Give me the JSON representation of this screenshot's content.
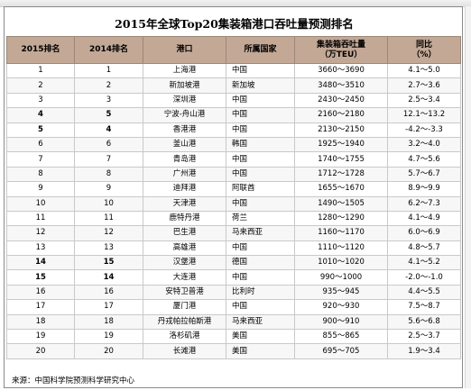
{
  "title": "2015年全球Top20集装箱港口吞吐量预测排名",
  "headers": {
    "rank2015": "2015排名",
    "rank2014": "2014排名",
    "port": "港口",
    "country": "所属国家",
    "volume_line1": "集装箱吞吐量",
    "volume_line2": "（万TEU）",
    "yoy_line1": "同比",
    "yoy_line2": "（%）"
  },
  "rows": [
    {
      "r2015": "1",
      "r2014": "1",
      "port": "上海港",
      "country": "中国",
      "volume": "3660～3690",
      "yoy": "4.1～5.0"
    },
    {
      "r2015": "2",
      "r2014": "2",
      "port": "新加坡港",
      "country": "新加坡",
      "volume": "3480～3510",
      "yoy": "2.7～3.6"
    },
    {
      "r2015": "3",
      "r2014": "3",
      "port": "深圳港",
      "country": "中国",
      "volume": "2430～2450",
      "yoy": "2.5～3.4"
    },
    {
      "r2015": "4",
      "r2014": "5",
      "port": "宁波-舟山港",
      "country": "中国",
      "volume": "2160～2180",
      "yoy": "12.1～13.2"
    },
    {
      "r2015": "5",
      "r2014": "4",
      "port": "香港港",
      "country": "中国",
      "volume": "2130～2150",
      "yoy": "-4.2～-3.3"
    },
    {
      "r2015": "6",
      "r2014": "6",
      "port": "釜山港",
      "country": "韩国",
      "volume": "1925～1940",
      "yoy": "3.2～4.0"
    },
    {
      "r2015": "7",
      "r2014": "7",
      "port": "青岛港",
      "country": "中国",
      "volume": "1740～1755",
      "yoy": "4.7～5.6"
    },
    {
      "r2015": "8",
      "r2014": "8",
      "port": "广州港",
      "country": "中国",
      "volume": "1712～1728",
      "yoy": "5.7～6.7"
    },
    {
      "r2015": "9",
      "r2014": "9",
      "port": "迪拜港",
      "country": "阿联酋",
      "volume": "1655～1670",
      "yoy": "8.9～9.9"
    },
    {
      "r2015": "10",
      "r2014": "10",
      "port": "天津港",
      "country": "中国",
      "volume": "1490～1505",
      "yoy": "6.2～7.3"
    },
    {
      "r2015": "11",
      "r2014": "11",
      "port": "鹿特丹港",
      "country": "荷兰",
      "volume": "1280～1290",
      "yoy": "4.1～4.9"
    },
    {
      "r2015": "12",
      "r2014": "12",
      "port": "巴生港",
      "country": "马来西亚",
      "volume": "1160～1170",
      "yoy": "6.0～6.9"
    },
    {
      "r2015": "13",
      "r2014": "13",
      "port": "高雄港",
      "country": "中国",
      "volume": "1110～1120",
      "yoy": "4.8～5.7"
    },
    {
      "r2015": "14",
      "r2014": "15",
      "port": "汉堡港",
      "country": "德国",
      "volume": "1010～1020",
      "yoy": "4.1～5.2"
    },
    {
      "r2015": "15",
      "r2014": "14",
      "port": "大连港",
      "country": "中国",
      "volume": "990～1000",
      "yoy": "-2.0～-1.0"
    },
    {
      "r2015": "16",
      "r2014": "16",
      "port": "安特卫普港",
      "country": "比利时",
      "volume": "935～945",
      "yoy": "4.4～5.5"
    },
    {
      "r2015": "17",
      "r2014": "17",
      "port": "厦门港",
      "country": "中国",
      "volume": "920～930",
      "yoy": "7.5～8.7"
    },
    {
      "r2015": "18",
      "r2014": "18",
      "port": "丹戎帕拉帕斯港",
      "country": "马来西亚",
      "volume": "900～910",
      "yoy": "5.6～6.8"
    },
    {
      "r2015": "19",
      "r2014": "19",
      "port": "洛杉矶港",
      "country": "美国",
      "volume": "855～865",
      "yoy": "2.5～3.7"
    },
    {
      "r2015": "20",
      "r2014": "20",
      "port": "长滩港",
      "country": "美国",
      "volume": "695～705",
      "yoy": "1.9～3.4"
    }
  ],
  "bold_rows": [
    "4",
    "5",
    "14",
    "15"
  ],
  "source": "来源：中国科学院预测科学研究中心",
  "colors": {
    "header_bg": "#c3a896",
    "grid": "#c9c9c9"
  }
}
